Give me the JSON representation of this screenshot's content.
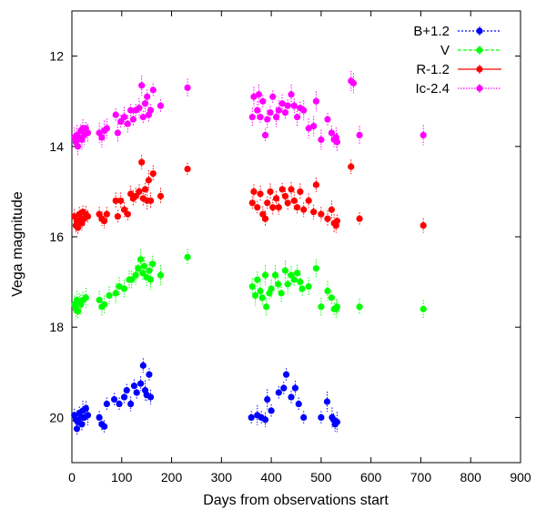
{
  "chart_data": {
    "type": "scatter",
    "xlabel": "Days from observations start",
    "ylabel": "Vega magnitude",
    "xlim": [
      0,
      900
    ],
    "ylim": [
      21,
      11
    ],
    "y_inverted": true,
    "x_ticks": [
      0,
      100,
      200,
      300,
      400,
      500,
      600,
      700,
      800,
      900
    ],
    "y_ticks": [
      12,
      14,
      16,
      18,
      20
    ],
    "grid": false,
    "legend_position": "top-right",
    "series": [
      {
        "name": "B+1.2",
        "color": "#0000ff",
        "points": [
          [
            5,
            19.95
          ],
          [
            8,
            20.05
          ],
          [
            10,
            20.25
          ],
          [
            12,
            20.1
          ],
          [
            15,
            19.9
          ],
          [
            18,
            20.0
          ],
          [
            20,
            20.15
          ],
          [
            22,
            19.85
          ],
          [
            25,
            20.0
          ],
          [
            28,
            19.8
          ],
          [
            32,
            19.95
          ],
          [
            55,
            20.0
          ],
          [
            60,
            20.15
          ],
          [
            65,
            20.2
          ],
          [
            70,
            19.7
          ],
          [
            85,
            19.6
          ],
          [
            95,
            19.7
          ],
          [
            105,
            19.55
          ],
          [
            110,
            19.4
          ],
          [
            118,
            19.7
          ],
          [
            125,
            19.3
          ],
          [
            130,
            19.45
          ],
          [
            138,
            19.25
          ],
          [
            143,
            18.85
          ],
          [
            147,
            19.4
          ],
          [
            150,
            19.5
          ],
          [
            155,
            19.05
          ],
          [
            158,
            19.55
          ],
          [
            360,
            20.0
          ],
          [
            372,
            19.95
          ],
          [
            380,
            20.0
          ],
          [
            388,
            20.05
          ],
          [
            392,
            19.6
          ],
          [
            400,
            19.85
          ],
          [
            415,
            19.45
          ],
          [
            425,
            19.35
          ],
          [
            430,
            19.05
          ],
          [
            440,
            19.55
          ],
          [
            448,
            19.35
          ],
          [
            455,
            19.7
          ],
          [
            465,
            20.0
          ],
          [
            500,
            20.0
          ],
          [
            512,
            19.65
          ],
          [
            522,
            20.0
          ],
          [
            525,
            20.05
          ],
          [
            528,
            20.15
          ],
          [
            532,
            20.1
          ]
        ]
      },
      {
        "name": "V",
        "color": "#00ff00",
        "points": [
          [
            5,
            17.5
          ],
          [
            8,
            17.6
          ],
          [
            10,
            17.4
          ],
          [
            12,
            17.65
          ],
          [
            15,
            17.45
          ],
          [
            18,
            17.5
          ],
          [
            22,
            17.4
          ],
          [
            28,
            17.35
          ],
          [
            55,
            17.4
          ],
          [
            60,
            17.55
          ],
          [
            65,
            17.5
          ],
          [
            75,
            17.3
          ],
          [
            88,
            17.25
          ],
          [
            95,
            17.1
          ],
          [
            105,
            17.15
          ],
          [
            115,
            16.95
          ],
          [
            120,
            16.95
          ],
          [
            128,
            16.85
          ],
          [
            133,
            16.7
          ],
          [
            138,
            16.5
          ],
          [
            142,
            16.8
          ],
          [
            145,
            16.65
          ],
          [
            150,
            16.9
          ],
          [
            155,
            16.75
          ],
          [
            158,
            16.95
          ],
          [
            162,
            16.6
          ],
          [
            178,
            16.85
          ],
          [
            232,
            16.45
          ],
          [
            362,
            17.1
          ],
          [
            368,
            17.3
          ],
          [
            372,
            16.95
          ],
          [
            378,
            17.2
          ],
          [
            382,
            17.35
          ],
          [
            388,
            16.85
          ],
          [
            390,
            17.55
          ],
          [
            396,
            17.25
          ],
          [
            400,
            17.15
          ],
          [
            408,
            16.85
          ],
          [
            414,
            17.05
          ],
          [
            420,
            17.25
          ],
          [
            428,
            16.75
          ],
          [
            433,
            17.05
          ],
          [
            440,
            16.85
          ],
          [
            446,
            16.95
          ],
          [
            452,
            16.8
          ],
          [
            458,
            17.0
          ],
          [
            462,
            17.15
          ],
          [
            475,
            17.1
          ],
          [
            490,
            16.7
          ],
          [
            500,
            17.55
          ],
          [
            513,
            17.2
          ],
          [
            521,
            17.35
          ],
          [
            526,
            17.6
          ],
          [
            530,
            17.6
          ],
          [
            532,
            17.55
          ],
          [
            577,
            17.55
          ],
          [
            705,
            17.6
          ]
        ]
      },
      {
        "name": "R-1.2",
        "color": "#ff0000",
        "points": [
          [
            5,
            15.55
          ],
          [
            8,
            15.75
          ],
          [
            10,
            15.65
          ],
          [
            12,
            15.8
          ],
          [
            15,
            15.5
          ],
          [
            18,
            15.6
          ],
          [
            20,
            15.7
          ],
          [
            22,
            15.45
          ],
          [
            25,
            15.6
          ],
          [
            28,
            15.5
          ],
          [
            32,
            15.55
          ],
          [
            55,
            15.5
          ],
          [
            60,
            15.6
          ],
          [
            65,
            15.65
          ],
          [
            70,
            15.5
          ],
          [
            88,
            15.2
          ],
          [
            92,
            15.55
          ],
          [
            98,
            15.2
          ],
          [
            105,
            15.4
          ],
          [
            112,
            15.5
          ],
          [
            118,
            15.05
          ],
          [
            123,
            15.15
          ],
          [
            128,
            15.1
          ],
          [
            135,
            15.0
          ],
          [
            140,
            14.35
          ],
          [
            143,
            15.15
          ],
          [
            147,
            14.95
          ],
          [
            151,
            15.2
          ],
          [
            154,
            14.75
          ],
          [
            158,
            15.2
          ],
          [
            163,
            14.6
          ],
          [
            178,
            15.1
          ],
          [
            232,
            14.5
          ],
          [
            362,
            15.25
          ],
          [
            365,
            15.0
          ],
          [
            372,
            15.35
          ],
          [
            378,
            15.05
          ],
          [
            383,
            15.5
          ],
          [
            388,
            15.6
          ],
          [
            392,
            15.25
          ],
          [
            398,
            15.0
          ],
          [
            403,
            15.35
          ],
          [
            410,
            15.15
          ],
          [
            415,
            15.35
          ],
          [
            422,
            14.95
          ],
          [
            428,
            15.1
          ],
          [
            433,
            15.25
          ],
          [
            440,
            14.95
          ],
          [
            446,
            15.2
          ],
          [
            452,
            15.35
          ],
          [
            458,
            15.0
          ],
          [
            465,
            15.4
          ],
          [
            475,
            15.2
          ],
          [
            485,
            15.45
          ],
          [
            490,
            14.85
          ],
          [
            500,
            15.5
          ],
          [
            513,
            15.6
          ],
          [
            521,
            15.4
          ],
          [
            526,
            15.7
          ],
          [
            530,
            15.75
          ],
          [
            532,
            15.65
          ],
          [
            560,
            14.45
          ],
          [
            577,
            15.6
          ],
          [
            705,
            15.75
          ]
        ]
      },
      {
        "name": "Ic-2.4",
        "color": "#ff00ff",
        "points": [
          [
            5,
            13.8
          ],
          [
            8,
            13.9
          ],
          [
            10,
            13.75
          ],
          [
            12,
            14.0
          ],
          [
            15,
            13.8
          ],
          [
            18,
            13.65
          ],
          [
            20,
            13.85
          ],
          [
            22,
            13.6
          ],
          [
            25,
            13.75
          ],
          [
            28,
            13.6
          ],
          [
            32,
            13.7
          ],
          [
            55,
            13.7
          ],
          [
            60,
            13.8
          ],
          [
            65,
            13.65
          ],
          [
            70,
            13.6
          ],
          [
            88,
            13.3
          ],
          [
            92,
            13.7
          ],
          [
            98,
            13.45
          ],
          [
            105,
            13.35
          ],
          [
            112,
            13.5
          ],
          [
            118,
            13.2
          ],
          [
            123,
            13.4
          ],
          [
            128,
            13.2
          ],
          [
            135,
            13.15
          ],
          [
            140,
            12.65
          ],
          [
            143,
            13.35
          ],
          [
            147,
            13.05
          ],
          [
            151,
            12.9
          ],
          [
            154,
            13.3
          ],
          [
            158,
            13.2
          ],
          [
            163,
            12.75
          ],
          [
            178,
            13.1
          ],
          [
            232,
            12.7
          ],
          [
            362,
            13.35
          ],
          [
            365,
            12.9
          ],
          [
            372,
            13.2
          ],
          [
            375,
            12.85
          ],
          [
            378,
            13.35
          ],
          [
            383,
            13.0
          ],
          [
            388,
            13.75
          ],
          [
            392,
            13.4
          ],
          [
            398,
            13.25
          ],
          [
            403,
            12.9
          ],
          [
            410,
            13.35
          ],
          [
            415,
            13.2
          ],
          [
            422,
            13.05
          ],
          [
            428,
            13.25
          ],
          [
            433,
            13.1
          ],
          [
            440,
            12.85
          ],
          [
            446,
            13.1
          ],
          [
            452,
            13.35
          ],
          [
            458,
            13.15
          ],
          [
            465,
            13.2
          ],
          [
            475,
            13.6
          ],
          [
            485,
            13.55
          ],
          [
            490,
            13.0
          ],
          [
            500,
            13.85
          ],
          [
            513,
            13.4
          ],
          [
            521,
            13.7
          ],
          [
            526,
            13.85
          ],
          [
            530,
            13.8
          ],
          [
            532,
            13.9
          ],
          [
            560,
            12.55
          ],
          [
            565,
            12.6
          ],
          [
            577,
            13.75
          ],
          [
            705,
            13.75
          ]
        ]
      }
    ]
  }
}
